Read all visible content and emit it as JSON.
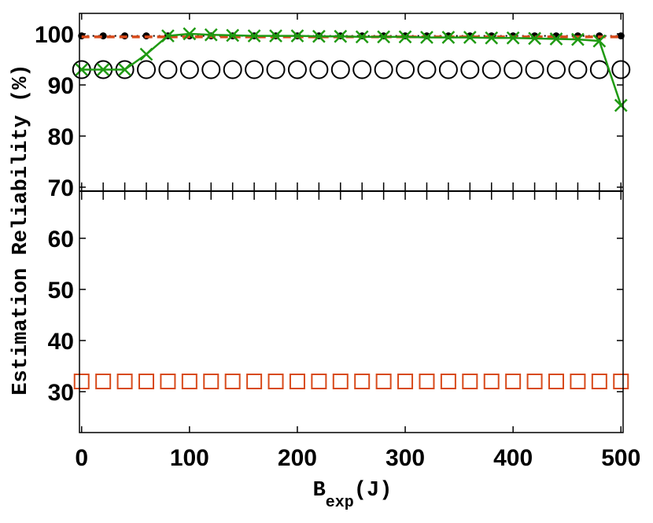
{
  "chart_data": {
    "type": "line",
    "title": "",
    "xlabel": {
      "main": "B",
      "subscript": "exp",
      "suffix": "(J)"
    },
    "ylabel": "Estimation Reliability (%)",
    "xlim": [
      -2,
      502
    ],
    "ylim": [
      22,
      104
    ],
    "break_y": 69.5,
    "xticks": [
      0,
      100,
      200,
      300,
      400,
      500
    ],
    "yticks": [
      30,
      40,
      50,
      60,
      70,
      80,
      90,
      100
    ],
    "grid": false,
    "legend": "none",
    "x": [
      0,
      20,
      40,
      60,
      80,
      100,
      120,
      140,
      160,
      180,
      200,
      220,
      240,
      260,
      280,
      300,
      320,
      340,
      360,
      380,
      400,
      420,
      440,
      460,
      480,
      500
    ],
    "series": [
      {
        "marker": "circle-open",
        "color": "#000000",
        "line": "none",
        "values": [
          93,
          93,
          93,
          93,
          93,
          93,
          93,
          93,
          93,
          93,
          93,
          93,
          93,
          93,
          93,
          93,
          93,
          93,
          93,
          93,
          93,
          93,
          93,
          93,
          93,
          93
        ]
      },
      {
        "marker": "square-open",
        "color": "#d84a1a",
        "line": "none",
        "values": [
          32,
          32,
          32,
          32,
          32,
          32,
          32,
          32,
          32,
          32,
          32,
          32,
          32,
          32,
          32,
          32,
          32,
          32,
          32,
          32,
          32,
          32,
          32,
          32,
          32,
          32
        ]
      },
      {
        "marker": "dot",
        "color": "#000000",
        "line": "dotted",
        "values": [
          99.6,
          99.6,
          99.6,
          99.6,
          99.6,
          99.6,
          99.6,
          99.6,
          99.6,
          99.6,
          99.6,
          99.6,
          99.6,
          99.6,
          99.6,
          99.6,
          99.6,
          99.6,
          99.6,
          99.6,
          99.6,
          99.6,
          99.6,
          99.6,
          99.6,
          99.6
        ]
      },
      {
        "marker": "none",
        "color": "#d84a1a",
        "line": "dashed",
        "values": [
          99.4,
          99.4,
          99.4,
          99.4,
          99.4,
          99.4,
          99.4,
          99.4,
          99.4,
          99.4,
          99.4,
          99.4,
          99.4,
          99.4,
          99.4,
          99.4,
          99.4,
          99.4,
          99.4,
          99.4,
          99.4,
          99.4,
          99.4,
          99.4,
          99.4,
          99.4
        ]
      },
      {
        "marker": "x",
        "color": "#1f9a12",
        "line": "solid",
        "values": [
          93,
          93,
          93,
          96,
          99.6,
          100,
          99.8,
          99.7,
          99.6,
          99.6,
          99.6,
          99.5,
          99.5,
          99.4,
          99.4,
          99.4,
          99.3,
          99.3,
          99.3,
          99.2,
          99.2,
          99.1,
          99.0,
          98.9,
          98.6,
          86
        ]
      }
    ]
  }
}
